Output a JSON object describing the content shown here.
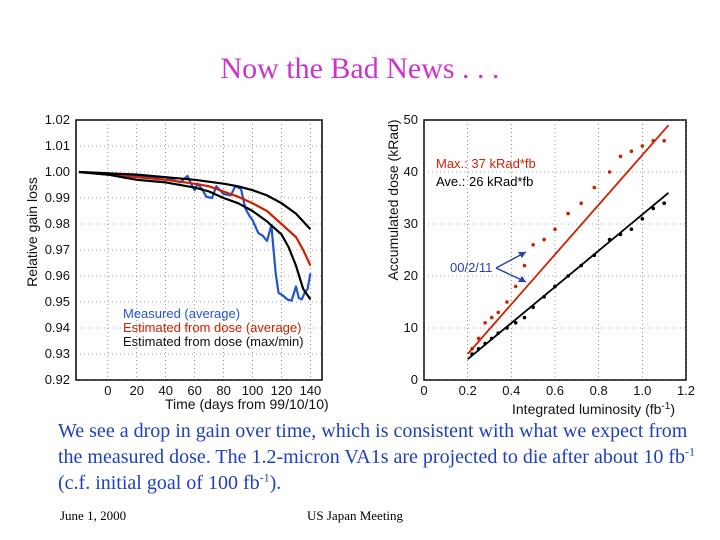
{
  "slide": {
    "title": "Now the Bad News . . .",
    "caption_part1": "We see a drop in gain over time, which is consistent with what we expect from the measured dose.   The 1.2-micron VA1s are projected to die after about 10 fb",
    "caption_sup1": "-1",
    "caption_part2": " (c.f. initial goal of  100 fb",
    "caption_sup2": "-1",
    "caption_part3": ").",
    "footer_left": "June 1, 2000",
    "footer_center": "US Japan Meeting"
  },
  "chart_data": [
    {
      "type": "line",
      "xlabel": "Time (days from 99/10/10)",
      "ylabel": "Relative gain loss",
      "xlim": [
        -22,
        148
      ],
      "ylim": [
        0.92,
        1.02
      ],
      "xticks": [
        "0",
        "20",
        "40",
        "60",
        "80",
        "100",
        "120",
        "140"
      ],
      "yticks": [
        "0.92",
        "0.93",
        "0.94",
        "0.95",
        "0.96",
        "0.97",
        "0.98",
        "0.99",
        "1.00",
        "1.01",
        "1.02"
      ],
      "legend": [
        "Measured (average)",
        "Estimated from dose (average)",
        "Estimated from dose (max/min)"
      ],
      "series": [
        {
          "name": "Measured (average)",
          "color": "#2255cc",
          "x": [
            -20,
            0,
            10,
            20,
            30,
            40,
            50,
            55,
            58,
            60,
            62,
            65,
            68,
            72,
            75,
            80,
            85,
            88,
            92,
            95,
            98,
            100,
            104,
            107,
            110,
            113,
            116,
            118,
            121,
            124,
            127,
            130,
            132,
            134,
            136,
            138,
            140
          ],
          "y": [
            1.0,
            0.999,
            0.9985,
            0.9985,
            0.998,
            0.998,
            0.996,
            0.9985,
            0.995,
            0.993,
            0.9955,
            0.9935,
            0.9905,
            0.99,
            0.9945,
            0.9915,
            0.991,
            0.9945,
            0.9935,
            0.986,
            0.983,
            0.9815,
            0.9765,
            0.9755,
            0.9735,
            0.9795,
            0.961,
            0.9535,
            0.9525,
            0.951,
            0.9505,
            0.956,
            0.9515,
            0.951,
            0.9535,
            0.955,
            0.961
          ]
        },
        {
          "name": "Estimated from dose (average)",
          "color": "#cc2200",
          "x": [
            -20,
            0,
            20,
            40,
            60,
            70,
            80,
            90,
            100,
            110,
            120,
            130,
            135,
            140
          ],
          "y": [
            1.0,
            0.9995,
            0.998,
            0.997,
            0.9955,
            0.9945,
            0.9925,
            0.9905,
            0.988,
            0.985,
            0.98,
            0.975,
            0.97,
            0.964
          ]
        },
        {
          "name": "Estimated from dose (max/min)",
          "color": "#000000",
          "x": [
            -20,
            0,
            20,
            40,
            60,
            80,
            90,
            100,
            110,
            120,
            130,
            140
          ],
          "y": [
            1.0,
            0.9995,
            0.999,
            0.998,
            0.997,
            0.9955,
            0.9945,
            0.993,
            0.991,
            0.988,
            0.984,
            0.978
          ]
        },
        {
          "name": "Estimated from dose (max/min)",
          "color": "#000000",
          "x": [
            -20,
            0,
            20,
            40,
            60,
            70,
            80,
            90,
            100,
            110,
            120,
            125,
            130,
            135,
            140
          ],
          "y": [
            1.0,
            0.999,
            0.997,
            0.996,
            0.994,
            0.9925,
            0.99,
            0.988,
            0.985,
            0.981,
            0.976,
            0.971,
            0.964,
            0.955,
            0.951
          ]
        }
      ]
    },
    {
      "type": "scatter",
      "xlabel": "Integrated luminosity (fb",
      "xlabel_sup": "-1",
      "xlabel_end": ")",
      "ylabel": "Accumulated dose (kRad)",
      "xlim": [
        0,
        1.2
      ],
      "ylim": [
        0,
        50
      ],
      "xticks": [
        "0",
        "0.2",
        "0.4",
        "0.6",
        "0.8",
        "1.0",
        "1.2"
      ],
      "yticks": [
        "0",
        "10",
        "20",
        "30",
        "40",
        "50"
      ],
      "annotations": {
        "max": "Max.: 37 kRad*fb",
        "ave": "Ave.: 26 kRad*fb",
        "date": "00/2/11"
      },
      "series": [
        {
          "name": "Max.",
          "color": "#cc2200",
          "x": [
            0.22,
            0.25,
            0.28,
            0.31,
            0.34,
            0.38,
            0.42,
            0.46,
            0.5,
            0.55,
            0.6,
            0.66,
            0.72,
            0.78,
            0.85,
            0.9,
            0.95,
            1.0,
            1.05,
            1.1
          ],
          "y": [
            6,
            8,
            11,
            12,
            13,
            15,
            18,
            22,
            26,
            27,
            29,
            32,
            34,
            37,
            40,
            43,
            44,
            45,
            46,
            46
          ],
          "fit": {
            "x": [
              0.2,
              1.12
            ],
            "y": [
              5,
              49
            ]
          }
        },
        {
          "name": "Ave.",
          "color": "#000000",
          "x": [
            0.22,
            0.25,
            0.28,
            0.31,
            0.34,
            0.38,
            0.42,
            0.46,
            0.5,
            0.55,
            0.6,
            0.66,
            0.72,
            0.78,
            0.85,
            0.9,
            0.95,
            1.0,
            1.05,
            1.1
          ],
          "y": [
            5,
            6,
            7,
            8,
            9,
            10,
            11,
            12,
            14,
            16,
            18,
            20,
            22,
            24,
            27,
            28,
            29,
            31,
            33,
            34
          ],
          "fit": {
            "x": [
              0.2,
              1.12
            ],
            "y": [
              4,
              36
            ]
          }
        }
      ]
    }
  ]
}
